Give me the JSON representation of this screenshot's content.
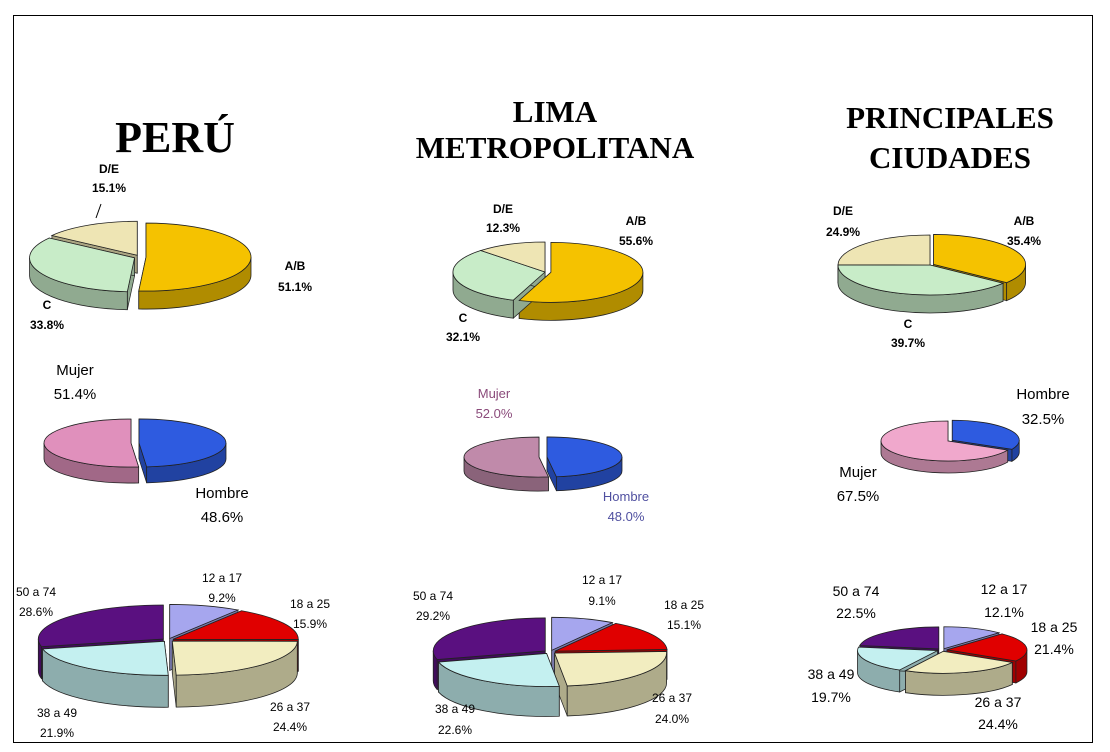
{
  "titles": {
    "peru": "PERÚ",
    "lima_line1": "LIMA",
    "lima_line2": "METROPOLITANA",
    "principales_line1": "PRINCIPALES",
    "principales_line2": "CIUDADES"
  },
  "chart_data": [
    {
      "type": "pie",
      "region": "PERÚ",
      "group": "nse",
      "slices": [
        {
          "label": "A/B",
          "value": 51.1,
          "display": "51.1%",
          "color": "#F5C200"
        },
        {
          "label": "C",
          "value": 33.8,
          "display": "33.8%",
          "color": "#C8ECC8"
        },
        {
          "label": "D/E",
          "value": 15.1,
          "display": "15.1%",
          "color": "#EEE5B4"
        }
      ]
    },
    {
      "type": "pie",
      "region": "LIMA METROPOLITANA",
      "group": "nse",
      "slices": [
        {
          "label": "A/B",
          "value": 55.6,
          "display": "55.6%",
          "color": "#F5C200"
        },
        {
          "label": "C",
          "value": 32.1,
          "display": "32.1%",
          "color": "#C8ECC8"
        },
        {
          "label": "D/E",
          "value": 12.3,
          "display": "12.3%",
          "color": "#EEE5B4"
        }
      ]
    },
    {
      "type": "pie",
      "region": "PRINCIPALES CIUDADES",
      "group": "nse",
      "slices": [
        {
          "label": "A/B",
          "value": 35.4,
          "display": "35.4%",
          "color": "#F5C200"
        },
        {
          "label": "C",
          "value": 39.7,
          "display": "39.7%",
          "color": "#C8ECC8"
        },
        {
          "label": "D/E",
          "value": 24.9,
          "display": "24.9%",
          "color": "#EEE5B4"
        }
      ]
    },
    {
      "type": "pie",
      "region": "PERÚ",
      "group": "sexo",
      "slices": [
        {
          "label": "Hombre",
          "value": 48.6,
          "display": "48.6%",
          "color": "#2E5BE0"
        },
        {
          "label": "Mujer",
          "value": 51.4,
          "display": "51.4%",
          "color": "#E090BC"
        }
      ]
    },
    {
      "type": "pie",
      "region": "LIMA METROPOLITANA",
      "group": "sexo",
      "slices": [
        {
          "label": "Hombre",
          "value": 48.0,
          "display": "48.0%",
          "color": "#2E5BE0"
        },
        {
          "label": "Mujer",
          "value": 52.0,
          "display": "52.0%",
          "color": "#C08AAA"
        }
      ]
    },
    {
      "type": "pie",
      "region": "PRINCIPALES CIUDADES",
      "group": "sexo",
      "slices": [
        {
          "label": "Hombre",
          "value": 32.5,
          "display": "32.5%",
          "color": "#2E5BE0"
        },
        {
          "label": "Mujer",
          "value": 67.5,
          "display": "67.5%",
          "color": "#F0A8CC"
        }
      ]
    },
    {
      "type": "pie",
      "region": "PERÚ",
      "group": "edad",
      "slices": [
        {
          "label": "12 a 17",
          "value": 9.2,
          "display": "9.2%",
          "color": "#A6A6EE"
        },
        {
          "label": "18 a 25",
          "value": 15.9,
          "display": "15.9%",
          "color": "#E00000"
        },
        {
          "label": "26 a 37",
          "value": 24.4,
          "display": "24.4%",
          "color": "#F2EDC0"
        },
        {
          "label": "38 a 49",
          "value": 21.9,
          "display": "21.9%",
          "color": "#C4F0F0"
        },
        {
          "label": "50 a 74",
          "value": 28.6,
          "display": "28.6%",
          "color": "#5A1080"
        }
      ]
    },
    {
      "type": "pie",
      "region": "LIMA METROPOLITANA",
      "group": "edad",
      "slices": [
        {
          "label": "12 a 17",
          "value": 9.1,
          "display": "9.1%",
          "color": "#A6A6EE"
        },
        {
          "label": "18 a 25",
          "value": 15.1,
          "display": "15.1%",
          "color": "#E00000"
        },
        {
          "label": "26 a 37",
          "value": 24.0,
          "display": "24.0%",
          "color": "#F2EDC0"
        },
        {
          "label": "38 a 49",
          "value": 22.6,
          "display": "22.6%",
          "color": "#C4F0F0"
        },
        {
          "label": "50 a 74",
          "value": 29.2,
          "display": "29.2%",
          "color": "#5A1080"
        }
      ]
    },
    {
      "type": "pie",
      "region": "PRINCIPALES CIUDADES",
      "group": "edad",
      "slices": [
        {
          "label": "12 a 17",
          "value": 12.1,
          "display": "12.1%",
          "color": "#A6A6EE"
        },
        {
          "label": "18 a 25",
          "value": 21.4,
          "display": "21.4%",
          "color": "#E00000"
        },
        {
          "label": "26 a 37",
          "value": 24.4,
          "display": "24.4%",
          "color": "#F2EDC0"
        },
        {
          "label": "38 a 49",
          "value": 19.7,
          "display": "19.7%",
          "color": "#C4F0F0"
        },
        {
          "label": "50 a 74",
          "value": 22.5,
          "display": "22.5%",
          "color": "#5A1080"
        }
      ]
    }
  ]
}
